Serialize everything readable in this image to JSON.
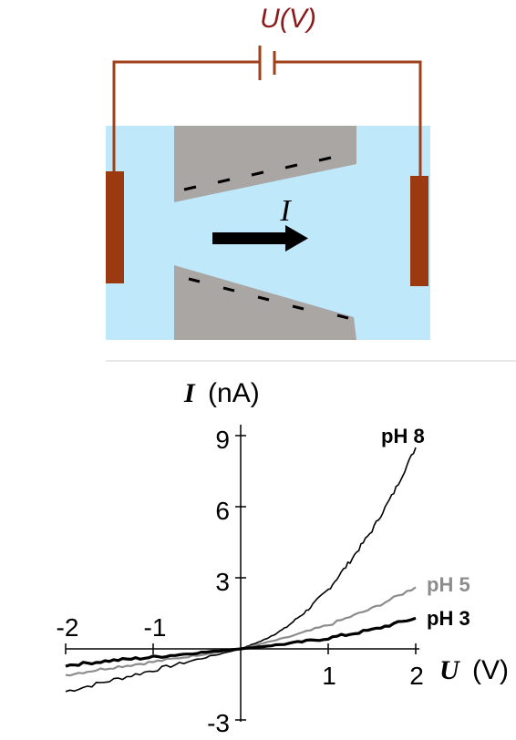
{
  "diagram": {
    "voltage_label": "U(V)",
    "current_label": "I",
    "colors": {
      "wire": "#a0401a",
      "electrode": "#9b3a10",
      "electrolyte": "#bfe9fb",
      "membrane": "#a9a6a4",
      "voltage_text": "#8b1a1a"
    }
  },
  "chart_data": {
    "type": "line",
    "ylabel_symbol": "I",
    "ylabel_unit": "(nA)",
    "xlabel_symbol": "U",
    "xlabel_unit": "(V)",
    "xlim": [
      -2,
      2
    ],
    "ylim": [
      -3,
      9
    ],
    "x_ticks": [
      "-2",
      "-1",
      "1",
      "2"
    ],
    "y_ticks": [
      "9",
      "6",
      "3",
      "-3"
    ],
    "series": [
      {
        "name": "pH 8",
        "color": "#000000",
        "x": [
          -2.0,
          -1.5,
          -1.0,
          -0.5,
          0.0,
          0.25,
          0.5,
          0.75,
          1.0,
          1.25,
          1.5,
          1.75,
          2.0
        ],
        "y": [
          -1.8,
          -1.35,
          -0.9,
          -0.45,
          0.0,
          0.35,
          0.85,
          1.6,
          2.5,
          3.7,
          5.0,
          6.6,
          8.5
        ]
      },
      {
        "name": "pH 5",
        "color": "#8c8c8c",
        "x": [
          -2.0,
          -1.5,
          -1.0,
          -0.5,
          0.0,
          0.5,
          1.0,
          1.5,
          2.0
        ],
        "y": [
          -1.1,
          -0.8,
          -0.55,
          -0.27,
          0.0,
          0.45,
          1.0,
          1.7,
          2.6
        ]
      },
      {
        "name": "pH 3",
        "color": "#000000",
        "x": [
          -2.0,
          -1.5,
          -1.0,
          -0.5,
          0.0,
          0.5,
          1.0,
          1.5,
          2.0
        ],
        "y": [
          -0.7,
          -0.5,
          -0.35,
          -0.17,
          0.0,
          0.2,
          0.45,
          0.8,
          1.3
        ]
      }
    ]
  }
}
